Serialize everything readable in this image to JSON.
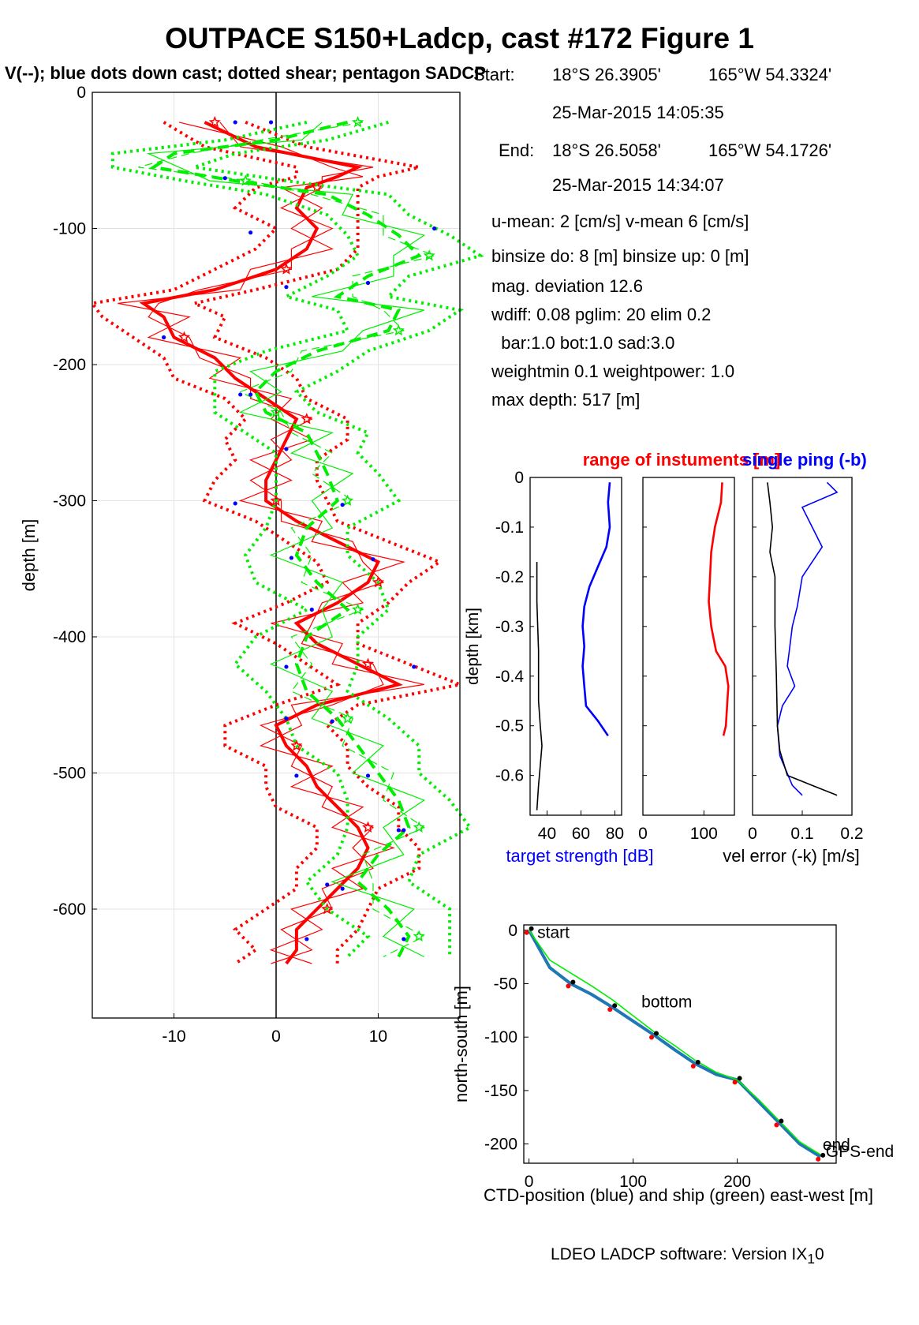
{
  "header": {
    "title": "OUTPACE S150+Ladcp, cast #172  Figure 1",
    "subtitle": "V(--); blue dots down cast; dotted shear; pentagon SADCP"
  },
  "info": {
    "start_label": "Start:",
    "start_lat": "18°S 26.3905'",
    "start_lon": "165°W 54.3324'",
    "start_time": "25-Mar-2015 14:05:35",
    "end_label": "End:",
    "end_lat": "18°S 26.5058'",
    "end_lon": "165°W 54.1726'",
    "end_time": "25-Mar-2015 14:34:07",
    "means": "u-mean:   2 [cm/s]    v-mean   6 [cm/s]",
    "binsize": "binsize do: 8 [m]  binsize up:  0 [m]",
    "magdev": "mag. deviation 12.6",
    "wdiff": "wdiff: 0.08  pglim: 20  elim 0.2",
    "weights1": "  bar:1.0 bot:1.0 sad:3.0",
    "weights2": "weightmin 0.1  weightpower: 1.0",
    "maxdepth": "max depth: 517 [m]"
  },
  "footer": {
    "version_main": "LDEO LADCP software: Version IX",
    "version_sub": "1",
    "version_tail": "0"
  },
  "colors": {
    "u": "#ff0000",
    "v": "#00ee00",
    "blue": "#0000ff",
    "ctd": "#1f77b4",
    "black": "#000000"
  },
  "chart_data": [
    {
      "type": "line",
      "id": "velocity_profile",
      "ylabel": "depth [m]",
      "xlim": [
        -18,
        18
      ],
      "ylim": [
        -680,
        0
      ],
      "xticks": [
        -10,
        0,
        10
      ],
      "yticks": [
        0,
        -100,
        -200,
        -300,
        -400,
        -500,
        -600
      ],
      "grid": true,
      "series": [
        {
          "id": "u",
          "color": "#ff0000",
          "depth": [
            -22,
            -40,
            -55,
            -62,
            -70,
            -85,
            -100,
            -115,
            -130,
            -145,
            -155,
            -165,
            -180,
            -195,
            -210,
            -225,
            -240,
            -255,
            -270,
            -285,
            -300,
            -315,
            -330,
            -345,
            -360,
            -375,
            -390,
            -405,
            -420,
            -435,
            -450,
            -465,
            -480,
            -495,
            -510,
            -525,
            -540,
            -555,
            -570,
            -585,
            -600,
            -615,
            -630,
            -640
          ],
          "values": [
            -7,
            -2,
            8,
            6,
            3,
            2,
            4,
            3,
            0,
            -6,
            -13,
            -11,
            -10,
            -6,
            -4,
            -1,
            2,
            1,
            0,
            -1,
            -1,
            2,
            6,
            10,
            9,
            6,
            2,
            4,
            8,
            12,
            4,
            0,
            1,
            3,
            4,
            6,
            8,
            9,
            8,
            6,
            4,
            2,
            2,
            1
          ]
        },
        {
          "id": "v",
          "color": "#00ee00",
          "depth": [
            -22,
            -35,
            -45,
            -55,
            -65,
            -75,
            -90,
            -105,
            -120,
            -135,
            -150,
            -160,
            -175,
            -190,
            -205,
            -220,
            -235,
            -250,
            -265,
            -280,
            -300,
            -320,
            -340,
            -360,
            -380,
            -400,
            -420,
            -440,
            -460,
            -480,
            -500,
            -520,
            -540,
            -560,
            -580,
            -600,
            -620,
            -635
          ],
          "values": [
            7,
            0,
            -10,
            -12,
            -4,
            5,
            9,
            12,
            14,
            9,
            6,
            12,
            11,
            4,
            0,
            -2,
            -1,
            3,
            4,
            5,
            6,
            3,
            2,
            4,
            7,
            3,
            2,
            3,
            6,
            8,
            10,
            12,
            13,
            10,
            8,
            11,
            13,
            12
          ]
        },
        {
          "id": "blue_dots",
          "color": "#0000ff",
          "kind": "scatter",
          "depth": [
            -22,
            -22,
            -63,
            -103,
            -143,
            -180,
            -222,
            -262,
            -302,
            -342,
            -380,
            -422,
            -460,
            -502,
            -542,
            -582,
            -622,
            -140,
            -343,
            -422,
            -462,
            -502,
            -542,
            -585,
            -622,
            -303,
            -222,
            -100
          ],
          "values": [
            -4,
            -0.5,
            -5,
            -2.5,
            1,
            -11,
            -3.5,
            1,
            -4,
            1.5,
            3.5,
            1,
            1,
            2,
            12,
            5,
            3,
            9,
            9.5,
            13.5,
            5.5,
            9,
            12.5,
            6.5,
            12.5,
            6.5,
            -2.5,
            15.5
          ]
        }
      ]
    },
    {
      "type": "line",
      "id": "target_strength",
      "ylabel": "depth [km]",
      "xlabel": "target strength [dB]",
      "xlim": [
        30,
        84
      ],
      "ylim": [
        -0.68,
        0
      ],
      "xticks": [
        40,
        60,
        80
      ],
      "yticks": [
        0,
        -0.1,
        -0.2,
        -0.3,
        -0.4,
        -0.5,
        -0.6
      ],
      "series": [
        {
          "color": "#0000ff",
          "depth": [
            -0.01,
            -0.05,
            -0.1,
            -0.14,
            -0.18,
            -0.22,
            -0.26,
            -0.3,
            -0.34,
            -0.38,
            -0.42,
            -0.46,
            -0.49,
            -0.52
          ],
          "values": [
            77,
            76,
            77,
            75,
            70,
            65,
            62,
            61,
            62,
            61,
            62,
            63,
            70,
            76
          ]
        },
        {
          "color": "#000000",
          "depth": [
            -0.17,
            -0.25,
            -0.35,
            -0.45,
            -0.5,
            -0.54,
            -0.58,
            -0.62,
            -0.67
          ],
          "values": [
            34,
            34,
            35,
            35,
            36,
            37,
            36,
            35,
            34
          ]
        }
      ]
    },
    {
      "type": "line",
      "id": "range",
      "title": "range of instuments [m]",
      "xlim": [
        0,
        150
      ],
      "ylim": [
        -0.68,
        0
      ],
      "xticks": [
        0,
        100
      ],
      "series": [
        {
          "color": "#ff0000",
          "depth": [
            -0.01,
            -0.05,
            -0.1,
            -0.15,
            -0.2,
            -0.25,
            -0.3,
            -0.35,
            -0.38,
            -0.42,
            -0.46,
            -0.5,
            -0.52
          ],
          "values": [
            130,
            128,
            118,
            112,
            110,
            108,
            112,
            120,
            135,
            140,
            138,
            136,
            132
          ]
        }
      ]
    },
    {
      "type": "line",
      "id": "vel_error",
      "title": "single ping (-b)",
      "xlabel": "vel error (-k) [m/s]",
      "xlim": [
        0,
        0.2
      ],
      "ylim": [
        -0.68,
        0
      ],
      "xticks": [
        0,
        0.1,
        0.2
      ],
      "series": [
        {
          "color": "#0000ff",
          "depth": [
            -0.01,
            -0.03,
            -0.06,
            -0.1,
            -0.14,
            -0.2,
            -0.26,
            -0.3,
            -0.34,
            -0.38,
            -0.42,
            -0.46,
            -0.5,
            -0.56,
            -0.62,
            -0.64
          ],
          "values": [
            0.15,
            0.17,
            0.1,
            0.12,
            0.14,
            0.1,
            0.09,
            0.08,
            0.075,
            0.07,
            0.085,
            0.06,
            0.05,
            0.055,
            0.08,
            0.1
          ]
        },
        {
          "color": "#000000",
          "depth": [
            -0.01,
            -0.05,
            -0.1,
            -0.15,
            -0.2,
            -0.3,
            -0.4,
            -0.5,
            -0.55,
            -0.6,
            -0.62,
            -0.64
          ],
          "values": [
            0.03,
            0.035,
            0.04,
            0.035,
            0.045,
            0.045,
            0.048,
            0.05,
            0.055,
            0.07,
            0.12,
            0.17
          ]
        }
      ]
    },
    {
      "type": "line",
      "id": "position",
      "ylabel": "north-south [m]",
      "xlabel": "CTD-position (blue) and ship (green) east-west [m]",
      "xlim": [
        -5,
        295
      ],
      "ylim": [
        -218,
        5
      ],
      "xticks": [
        0,
        100,
        200
      ],
      "yticks": [
        0,
        -50,
        -100,
        -150,
        -200
      ],
      "annotations": [
        "start",
        "bottom",
        "end",
        "GPS-end"
      ],
      "series": [
        {
          "color": "#1f77b4",
          "x": [
            0,
            20,
            40,
            60,
            80,
            100,
            120,
            140,
            160,
            180,
            200,
            220,
            240,
            260,
            280
          ],
          "values": [
            0,
            -35,
            -50,
            -60,
            -72,
            -85,
            -98,
            -112,
            -125,
            -135,
            -140,
            -160,
            -180,
            -200,
            -212
          ]
        },
        {
          "color": "#00ee00",
          "x": [
            0,
            20,
            40,
            60,
            80,
            100,
            120,
            140,
            160,
            180,
            200,
            220,
            240,
            260,
            280
          ],
          "values": [
            0,
            -28,
            -40,
            -52,
            -65,
            -80,
            -95,
            -108,
            -122,
            -133,
            -140,
            -158,
            -178,
            -198,
            -210
          ]
        }
      ]
    }
  ]
}
